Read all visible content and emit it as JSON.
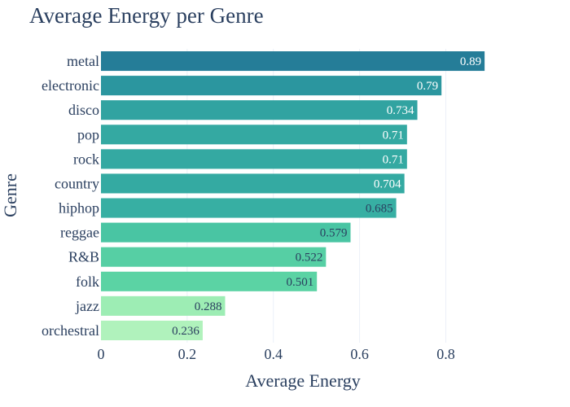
{
  "chart_data": {
    "type": "bar",
    "orientation": "horizontal",
    "title": "Average Energy per Genre",
    "xlabel": "Average Energy",
    "ylabel": "Genre",
    "xlim": [
      0,
      0.937
    ],
    "xticks": [
      0,
      0.2,
      0.4,
      0.6,
      0.8
    ],
    "xtick_labels": [
      "0",
      "0.2",
      "0.4",
      "0.6",
      "0.8"
    ],
    "grid": true,
    "categories": [
      "metal",
      "electronic",
      "disco",
      "pop",
      "rock",
      "country",
      "hiphop",
      "reggae",
      "R&B",
      "folk",
      "jazz",
      "orchestral"
    ],
    "values": [
      0.89,
      0.79,
      0.734,
      0.71,
      0.71,
      0.704,
      0.685,
      0.579,
      0.522,
      0.501,
      0.288,
      0.236
    ],
    "value_labels": [
      "0.89",
      "0.79",
      "0.734",
      "0.71",
      "0.71",
      "0.704",
      "0.685",
      "0.579",
      "0.522",
      "0.501",
      "0.288",
      "0.236"
    ],
    "colorscale": [
      "#b0f2bc",
      "#89e8ac",
      "#67dba5",
      "#4cc8a3",
      "#38b2a3",
      "#2c98a0",
      "#257d98"
    ]
  }
}
